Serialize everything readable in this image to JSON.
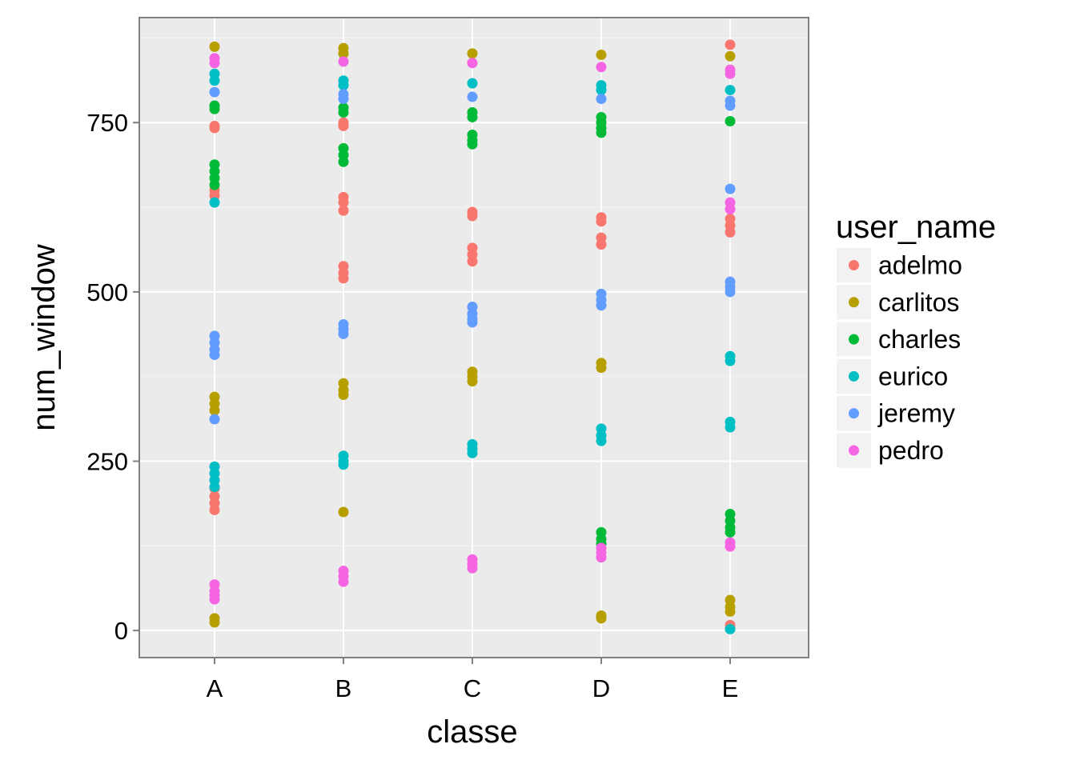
{
  "chart_data": {
    "type": "scatter",
    "xlabel": "classe",
    "ylabel": "num_window",
    "categories": [
      "A",
      "B",
      "C",
      "D",
      "E"
    ],
    "ylim": [
      -40,
      905
    ],
    "yticks": [
      0,
      250,
      500,
      750
    ],
    "grid": true,
    "legend": {
      "title": "user_name",
      "position": "right"
    },
    "series": [
      {
        "name": "adelmo",
        "color": "#F8766D",
        "points": [
          [
            "A",
            742
          ],
          [
            "A",
            745
          ],
          [
            "A",
            650
          ],
          [
            "A",
            642
          ],
          [
            "A",
            210
          ],
          [
            "A",
            198
          ],
          [
            "A",
            188
          ],
          [
            "A",
            178
          ],
          [
            "B",
            750
          ],
          [
            "B",
            745
          ],
          [
            "B",
            640
          ],
          [
            "B",
            632
          ],
          [
            "B",
            620
          ],
          [
            "B",
            538
          ],
          [
            "B",
            528
          ],
          [
            "B",
            520
          ],
          [
            "C",
            618
          ],
          [
            "C",
            612
          ],
          [
            "C",
            565
          ],
          [
            "C",
            555
          ],
          [
            "C",
            545
          ],
          [
            "D",
            610
          ],
          [
            "D",
            604
          ],
          [
            "D",
            580
          ],
          [
            "D",
            570
          ],
          [
            "E",
            865
          ],
          [
            "E",
            608
          ],
          [
            "E",
            598
          ],
          [
            "E",
            588
          ],
          [
            "E",
            8
          ],
          [
            "E",
            3
          ]
        ]
      },
      {
        "name": "carlitos",
        "color": "#B79F00",
        "points": [
          [
            "A",
            862
          ],
          [
            "A",
            345
          ],
          [
            "A",
            335
          ],
          [
            "A",
            325
          ],
          [
            "A",
            18
          ],
          [
            "A",
            12
          ],
          [
            "B",
            860
          ],
          [
            "B",
            852
          ],
          [
            "B",
            365
          ],
          [
            "B",
            355
          ],
          [
            "B",
            348
          ],
          [
            "B",
            175
          ],
          [
            "C",
            852
          ],
          [
            "C",
            382
          ],
          [
            "C",
            375
          ],
          [
            "C",
            368
          ],
          [
            "D",
            850
          ],
          [
            "D",
            395
          ],
          [
            "D",
            388
          ],
          [
            "D",
            22
          ],
          [
            "D",
            18
          ],
          [
            "E",
            848
          ],
          [
            "E",
            45
          ],
          [
            "E",
            35
          ],
          [
            "E",
            28
          ]
        ]
      },
      {
        "name": "charles",
        "color": "#00BA38",
        "points": [
          [
            "A",
            775
          ],
          [
            "A",
            770
          ],
          [
            "A",
            688
          ],
          [
            "A",
            678
          ],
          [
            "A",
            668
          ],
          [
            "A",
            658
          ],
          [
            "B",
            772
          ],
          [
            "B",
            765
          ],
          [
            "B",
            712
          ],
          [
            "B",
            702
          ],
          [
            "B",
            692
          ],
          [
            "C",
            765
          ],
          [
            "C",
            758
          ],
          [
            "C",
            732
          ],
          [
            "C",
            724
          ],
          [
            "C",
            718
          ],
          [
            "D",
            758
          ],
          [
            "D",
            750
          ],
          [
            "D",
            742
          ],
          [
            "D",
            735
          ],
          [
            "D",
            145
          ],
          [
            "D",
            135
          ],
          [
            "D",
            128
          ],
          [
            "E",
            752
          ],
          [
            "E",
            172
          ],
          [
            "E",
            162
          ],
          [
            "E",
            152
          ],
          [
            "E",
            145
          ]
        ]
      },
      {
        "name": "eurico",
        "color": "#00BFC4",
        "points": [
          [
            "A",
            822
          ],
          [
            "A",
            812
          ],
          [
            "A",
            632
          ],
          [
            "A",
            242
          ],
          [
            "A",
            232
          ],
          [
            "A",
            222
          ],
          [
            "A",
            212
          ],
          [
            "B",
            812
          ],
          [
            "B",
            805
          ],
          [
            "B",
            258
          ],
          [
            "B",
            250
          ],
          [
            "B",
            245
          ],
          [
            "C",
            808
          ],
          [
            "C",
            275
          ],
          [
            "C",
            268
          ],
          [
            "C",
            262
          ],
          [
            "D",
            805
          ],
          [
            "D",
            798
          ],
          [
            "D",
            298
          ],
          [
            "D",
            288
          ],
          [
            "D",
            280
          ],
          [
            "E",
            798
          ],
          [
            "E",
            405
          ],
          [
            "E",
            398
          ],
          [
            "E",
            308
          ],
          [
            "E",
            300
          ],
          [
            "E",
            2
          ]
        ]
      },
      {
        "name": "jeremy",
        "color": "#619CFF",
        "points": [
          [
            "A",
            795
          ],
          [
            "A",
            435
          ],
          [
            "A",
            425
          ],
          [
            "A",
            415
          ],
          [
            "A",
            407
          ],
          [
            "A",
            312
          ],
          [
            "B",
            792
          ],
          [
            "B",
            785
          ],
          [
            "B",
            452
          ],
          [
            "B",
            445
          ],
          [
            "B",
            438
          ],
          [
            "C",
            788
          ],
          [
            "C",
            478
          ],
          [
            "C",
            468
          ],
          [
            "C",
            460
          ],
          [
            "C",
            455
          ],
          [
            "D",
            785
          ],
          [
            "D",
            497
          ],
          [
            "D",
            488
          ],
          [
            "D",
            480
          ],
          [
            "E",
            782
          ],
          [
            "E",
            775
          ],
          [
            "E",
            652
          ],
          [
            "E",
            515
          ],
          [
            "E",
            507
          ],
          [
            "E",
            500
          ]
        ]
      },
      {
        "name": "pedro",
        "color": "#F564E3",
        "points": [
          [
            "A",
            845
          ],
          [
            "A",
            838
          ],
          [
            "A",
            68
          ],
          [
            "A",
            58
          ],
          [
            "A",
            52
          ],
          [
            "A",
            46
          ],
          [
            "B",
            840
          ],
          [
            "B",
            88
          ],
          [
            "B",
            80
          ],
          [
            "B",
            72
          ],
          [
            "C",
            838
          ],
          [
            "C",
            105
          ],
          [
            "C",
            98
          ],
          [
            "C",
            92
          ],
          [
            "D",
            832
          ],
          [
            "D",
            122
          ],
          [
            "D",
            115
          ],
          [
            "D",
            108
          ],
          [
            "E",
            828
          ],
          [
            "E",
            822
          ],
          [
            "E",
            632
          ],
          [
            "E",
            622
          ],
          [
            "E",
            130
          ],
          [
            "E",
            124
          ]
        ]
      }
    ]
  }
}
